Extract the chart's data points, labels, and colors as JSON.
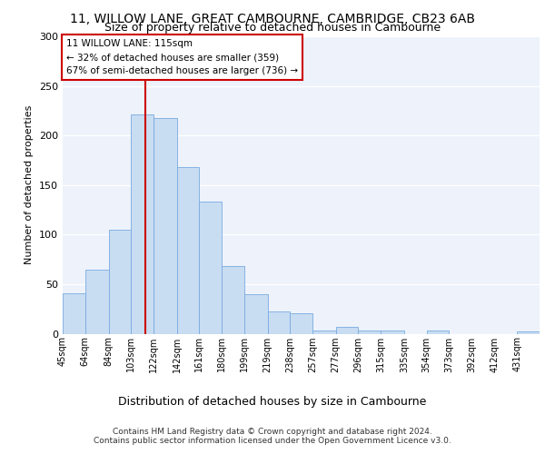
{
  "title1": "11, WILLOW LANE, GREAT CAMBOURNE, CAMBRIDGE, CB23 6AB",
  "title2": "Size of property relative to detached houses in Cambourne",
  "xlabel": "Distribution of detached houses by size in Cambourne",
  "ylabel": "Number of detached properties",
  "footer1": "Contains HM Land Registry data © Crown copyright and database right 2024.",
  "footer2": "Contains public sector information licensed under the Open Government Licence v3.0.",
  "annotation_line1": "11 WILLOW LANE: 115sqm",
  "annotation_line2": "← 32% of detached houses are smaller (359)",
  "annotation_line3": "67% of semi-detached houses are larger (736) →",
  "bar_categories": [
    "45sqm",
    "64sqm",
    "84sqm",
    "103sqm",
    "122sqm",
    "142sqm",
    "161sqm",
    "180sqm",
    "199sqm",
    "219sqm",
    "238sqm",
    "257sqm",
    "277sqm",
    "296sqm",
    "315sqm",
    "335sqm",
    "354sqm",
    "373sqm",
    "392sqm",
    "412sqm",
    "431sqm"
  ],
  "bar_values": [
    41,
    65,
    105,
    221,
    218,
    168,
    133,
    68,
    40,
    22,
    21,
    3,
    7,
    3,
    3,
    0,
    3,
    0,
    0,
    0,
    2
  ],
  "bar_edges": [
    45,
    64,
    84,
    103,
    122,
    142,
    161,
    180,
    199,
    219,
    238,
    257,
    277,
    296,
    315,
    335,
    354,
    373,
    392,
    412,
    431,
    450
  ],
  "bar_color": "#c8dcf2",
  "bar_edge_color": "#7aabe0",
  "vline_color": "#cc0000",
  "vline_x": 115,
  "bg_color": "#edf2fb",
  "grid_color": "#ffffff",
  "annotation_box_color": "#ffffff",
  "annotation_box_edge": "#cc0000",
  "ylim": [
    0,
    300
  ],
  "yticks": [
    0,
    50,
    100,
    150,
    200,
    250,
    300
  ],
  "title1_fontsize": 10,
  "title2_fontsize": 9
}
